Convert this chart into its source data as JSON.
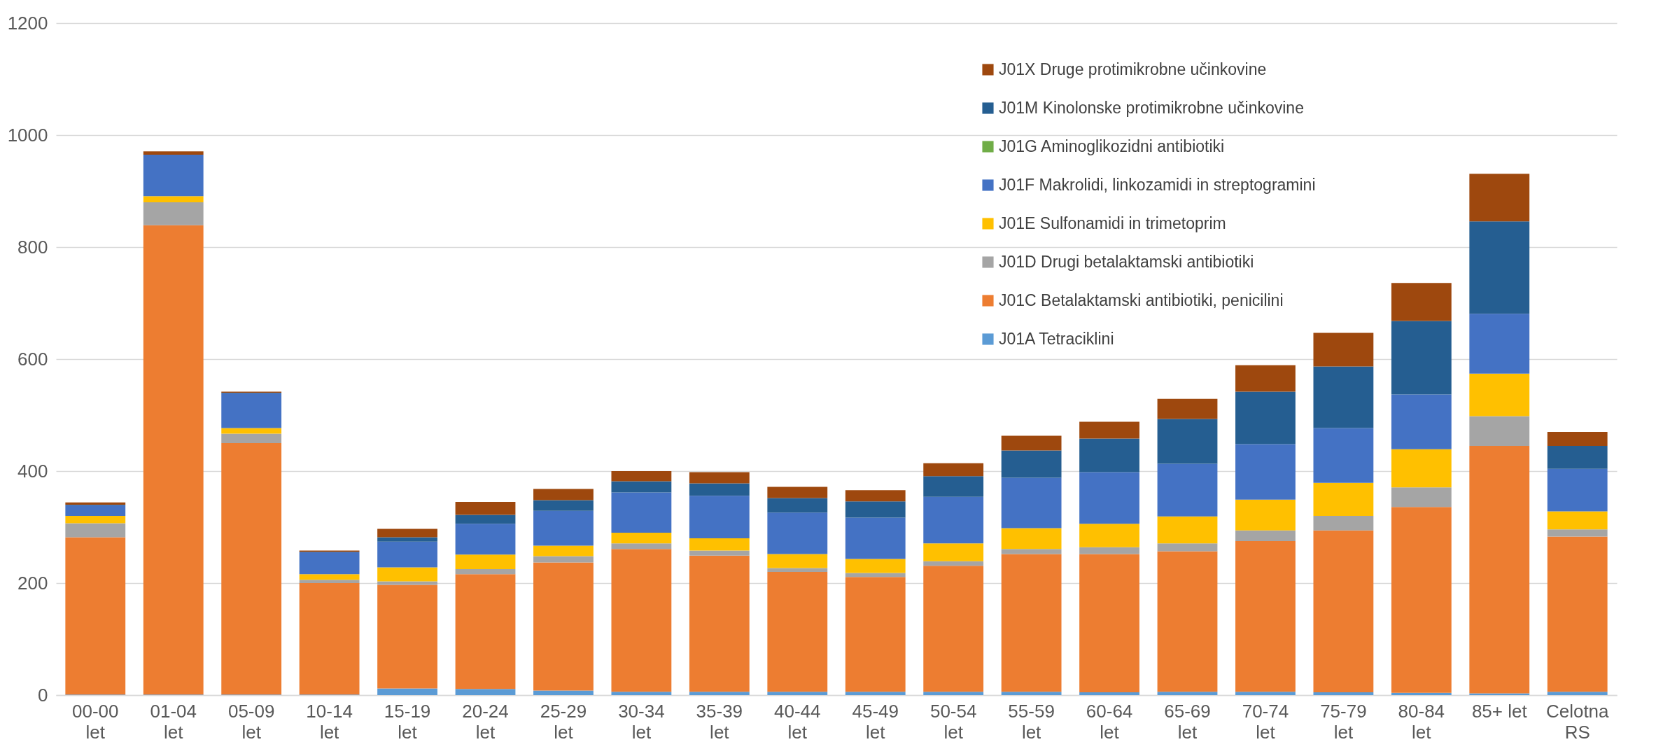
{
  "chart_data": {
    "type": "bar",
    "stacked": true,
    "categories": [
      "00-00 let",
      "01-04 let",
      "05-09 let",
      "10-14 let",
      "15-19 let",
      "20-24 let",
      "25-29 let",
      "30-34 let",
      "35-39 let",
      "40-44 let",
      "45-49 let",
      "50-54 let",
      "55-59 let",
      "60-64 let",
      "65-69 let",
      "70-74 let",
      "75-79 let",
      "80-84 let",
      "85+ let",
      "Celotna RS"
    ],
    "series": [
      {
        "name": "J01A Tetraciklini",
        "color": "#5b9bd5",
        "values": [
          1,
          1,
          1,
          1,
          12,
          11,
          8,
          6,
          6,
          6,
          6,
          6,
          6,
          5,
          6,
          6,
          5,
          4,
          3,
          6
        ]
      },
      {
        "name": "J01C Betalaktamski antibiotiki, penicilini",
        "color": "#ed7d31",
        "values": [
          281,
          838,
          449,
          199,
          185,
          205,
          229,
          255,
          243,
          214,
          205,
          225,
          246,
          247,
          251,
          269,
          289,
          332,
          442,
          277
        ]
      },
      {
        "name": "J01D Drugi betalaktamski antibiotiki",
        "color": "#a5a5a5",
        "values": [
          25,
          41,
          17,
          6,
          6,
          9,
          11,
          10,
          9,
          7,
          7,
          8,
          9,
          12,
          14,
          19,
          26,
          35,
          53,
          13
        ]
      },
      {
        "name": "J01E Sulfonamidi in trimetoprim",
        "color": "#ffc000",
        "values": [
          13,
          11,
          10,
          10,
          25,
          26,
          19,
          19,
          22,
          25,
          25,
          32,
          37,
          42,
          48,
          55,
          59,
          68,
          76,
          32
        ]
      },
      {
        "name": "J01F Makrolidi, linkozamidi in streptogramini",
        "color": "#4472c4",
        "values": [
          19,
          74,
          62,
          39,
          46,
          55,
          62,
          72,
          76,
          74,
          74,
          83,
          90,
          92,
          94,
          99,
          98,
          98,
          107,
          76
        ]
      },
      {
        "name": "J01G Aminoglikozidni antibiotiki",
        "color": "#70ad47",
        "values": [
          0,
          0,
          0,
          0,
          0,
          0,
          0,
          0,
          0,
          0,
          0,
          0,
          0,
          0,
          0,
          0,
          0,
          0,
          0,
          0
        ]
      },
      {
        "name": "J01M Kinolonske protimikrobne učinkovine",
        "color": "#255e91",
        "values": [
          1,
          0,
          1,
          1,
          8,
          16,
          19,
          20,
          22,
          26,
          29,
          37,
          49,
          60,
          80,
          94,
          110,
          131,
          165,
          41
        ]
      },
      {
        "name": "J01X Druge protimikrobne učinkovine",
        "color": "#9e480e",
        "values": [
          4,
          6,
          2,
          2,
          15,
          23,
          20,
          18,
          20,
          20,
          20,
          23,
          26,
          30,
          36,
          47,
          60,
          68,
          85,
          25
        ]
      }
    ],
    "ylim": [
      0,
      1200
    ],
    "yticks": [
      0,
      200,
      400,
      600,
      800,
      1000,
      1200
    ],
    "grid": "y",
    "legend": "top right"
  }
}
